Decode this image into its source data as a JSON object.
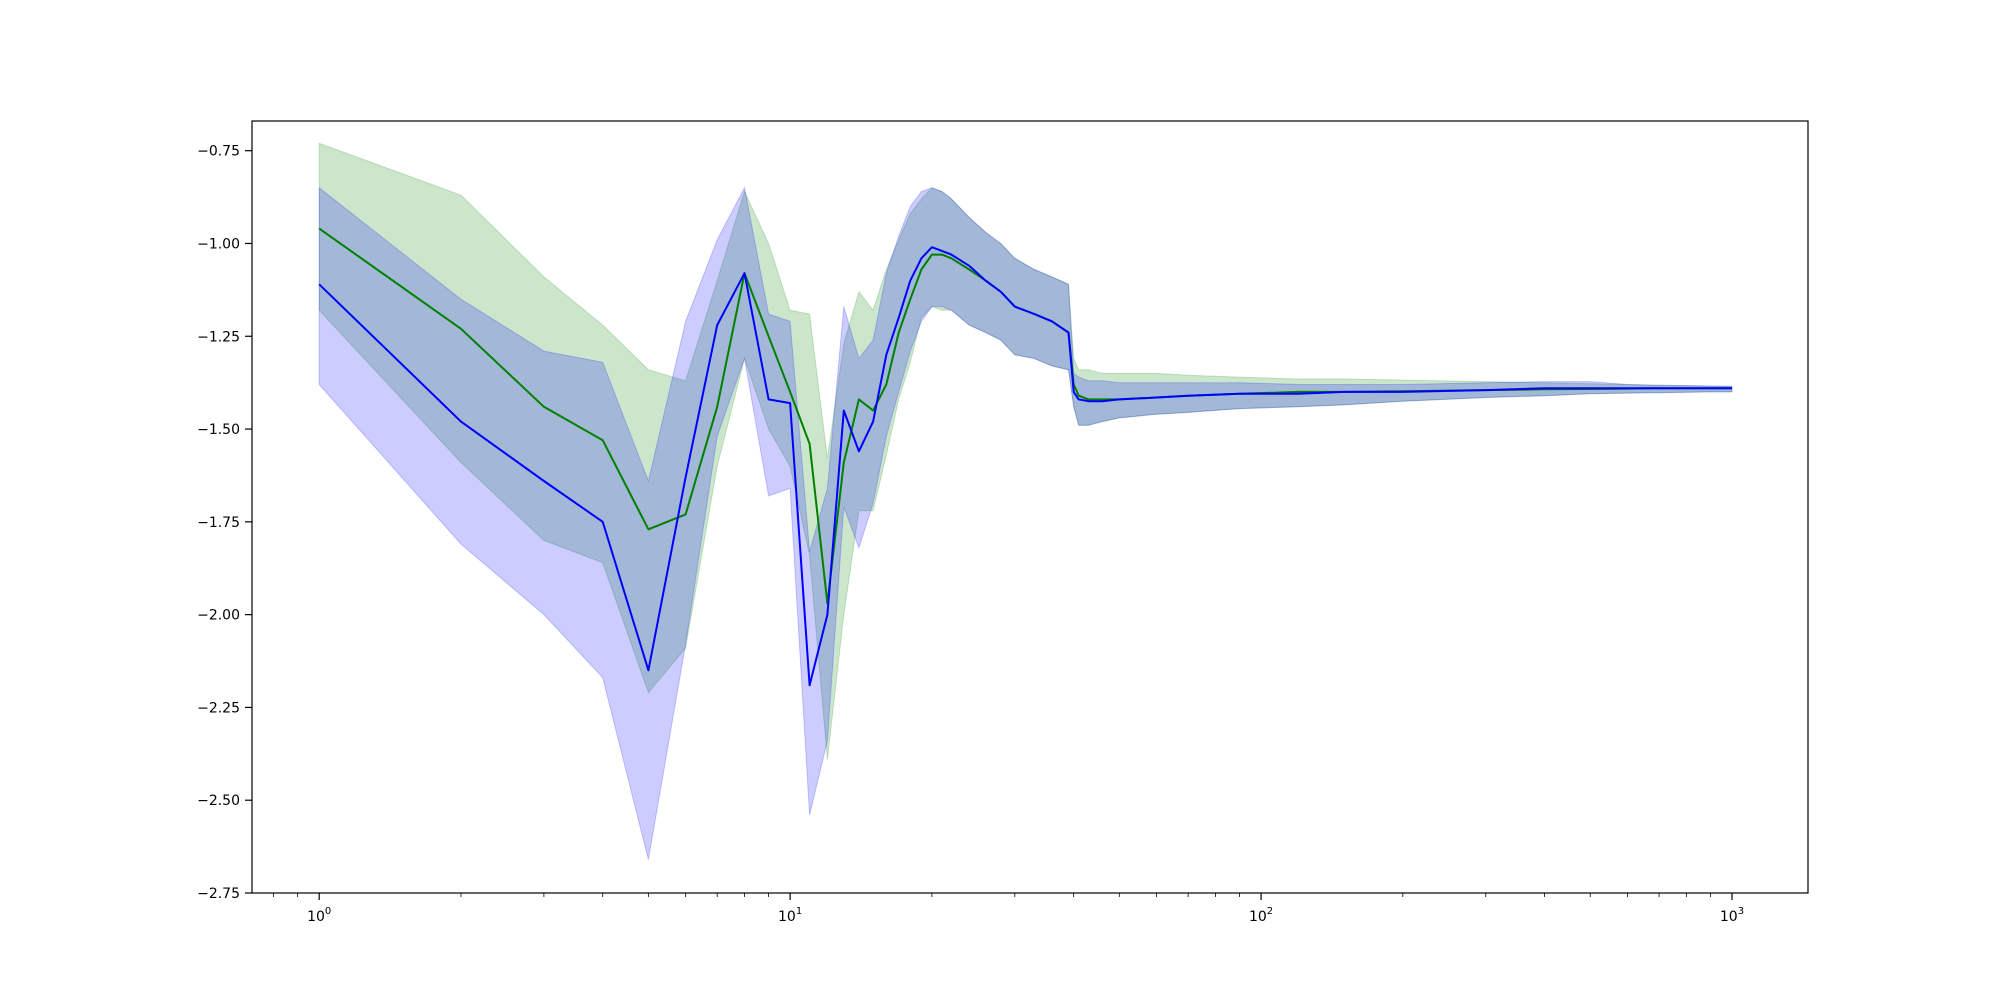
{
  "chart_data": {
    "type": "area",
    "title": "",
    "xlabel": "",
    "ylabel": "",
    "x_scale": "log",
    "xlim": [
      0.72,
      1450
    ],
    "ylim": [
      -2.75,
      -0.67
    ],
    "grid": false,
    "legend": "none",
    "x_major_ticks": [
      {
        "value": 1,
        "base": "10",
        "exp": "0"
      },
      {
        "value": 10,
        "base": "10",
        "exp": "1"
      },
      {
        "value": 100,
        "base": "10",
        "exp": "2"
      },
      {
        "value": 1000,
        "base": "10",
        "exp": "3"
      }
    ],
    "y_ticks": [
      {
        "value": -0.75,
        "label": "−0.75"
      },
      {
        "value": -1.0,
        "label": "−1.00"
      },
      {
        "value": -1.25,
        "label": "−1.25"
      },
      {
        "value": -1.5,
        "label": "−1.50"
      },
      {
        "value": -1.75,
        "label": "−1.75"
      },
      {
        "value": -2.0,
        "label": "−2.00"
      },
      {
        "value": -2.25,
        "label": "−2.25"
      },
      {
        "value": -2.5,
        "label": "−2.50"
      },
      {
        "value": -2.75,
        "label": "−2.75"
      }
    ],
    "series": [
      {
        "color": "#008000",
        "band_color": "#008000",
        "band_opacity": 0.2,
        "x": [
          1,
          2,
          3,
          4,
          5,
          6,
          7,
          8,
          9,
          10,
          11,
          12,
          13,
          14,
          15,
          16,
          17,
          18,
          19,
          20,
          21,
          22,
          24,
          26,
          28,
          30,
          33,
          36,
          39,
          40,
          41,
          43,
          46,
          50,
          60,
          70,
          90,
          120,
          150,
          200,
          300,
          400,
          500,
          600,
          700,
          800,
          900,
          1000
        ],
        "y": [
          -0.96,
          -1.23,
          -1.44,
          -1.53,
          -1.77,
          -1.73,
          -1.44,
          -1.08,
          -1.25,
          -1.4,
          -1.54,
          -1.97,
          -1.59,
          -1.42,
          -1.45,
          -1.38,
          -1.24,
          -1.15,
          -1.07,
          -1.03,
          -1.03,
          -1.04,
          -1.07,
          -1.1,
          -1.13,
          -1.17,
          -1.19,
          -1.21,
          -1.24,
          -1.38,
          -1.41,
          -1.42,
          -1.42,
          -1.42,
          -1.415,
          -1.41,
          -1.405,
          -1.4,
          -1.4,
          -1.398,
          -1.395,
          -1.393,
          -1.392,
          -1.391,
          -1.39,
          -1.39,
          -1.39,
          -1.39
        ],
        "lower": [
          -1.18,
          -1.59,
          -1.8,
          -1.86,
          -2.21,
          -2.09,
          -1.6,
          -1.31,
          -1.5,
          -1.6,
          -1.84,
          -2.39,
          -2.0,
          -1.72,
          -1.72,
          -1.57,
          -1.42,
          -1.32,
          -1.2,
          -1.17,
          -1.18,
          -1.18,
          -1.22,
          -1.24,
          -1.26,
          -1.3,
          -1.31,
          -1.33,
          -1.34,
          -1.44,
          -1.49,
          -1.49,
          -1.48,
          -1.47,
          -1.46,
          -1.455,
          -1.445,
          -1.44,
          -1.435,
          -1.425,
          -1.415,
          -1.41,
          -1.405,
          -1.403,
          -1.402,
          -1.401,
          -1.4,
          -1.4
        ],
        "upper": [
          -0.73,
          -0.87,
          -1.09,
          -1.22,
          -1.34,
          -1.37,
          -1.1,
          -0.86,
          -1.0,
          -1.18,
          -1.19,
          -1.58,
          -1.27,
          -1.13,
          -1.18,
          -1.07,
          -0.99,
          -0.92,
          -0.88,
          -0.85,
          -0.86,
          -0.88,
          -0.93,
          -0.97,
          -1.0,
          -1.04,
          -1.07,
          -1.09,
          -1.11,
          -1.31,
          -1.34,
          -1.34,
          -1.35,
          -1.35,
          -1.35,
          -1.355,
          -1.36,
          -1.365,
          -1.365,
          -1.368,
          -1.372,
          -1.375,
          -1.378,
          -1.38,
          -1.382,
          -1.383,
          -1.384,
          -1.385
        ]
      },
      {
        "color": "#0000ff",
        "band_color": "#0000ff",
        "band_opacity": 0.2,
        "x": [
          1,
          2,
          3,
          4,
          5,
          6,
          7,
          8,
          9,
          10,
          11,
          12,
          13,
          14,
          15,
          16,
          17,
          18,
          19,
          20,
          21,
          22,
          24,
          26,
          28,
          30,
          33,
          36,
          39,
          40,
          41,
          43,
          46,
          50,
          60,
          70,
          90,
          120,
          150,
          200,
          300,
          400,
          500,
          600,
          700,
          800,
          900,
          1000
        ],
        "y": [
          -1.11,
          -1.48,
          -1.64,
          -1.75,
          -2.15,
          -1.63,
          -1.22,
          -1.08,
          -1.42,
          -1.43,
          -2.19,
          -2.0,
          -1.45,
          -1.56,
          -1.48,
          -1.3,
          -1.2,
          -1.1,
          -1.04,
          -1.01,
          -1.02,
          -1.03,
          -1.06,
          -1.1,
          -1.13,
          -1.17,
          -1.19,
          -1.21,
          -1.24,
          -1.4,
          -1.42,
          -1.425,
          -1.425,
          -1.42,
          -1.415,
          -1.41,
          -1.405,
          -1.405,
          -1.4,
          -1.4,
          -1.395,
          -1.39,
          -1.39,
          -1.39,
          -1.39,
          -1.39,
          -1.39,
          -1.39
        ],
        "lower": [
          -1.38,
          -1.81,
          -2.0,
          -2.17,
          -2.66,
          -2.08,
          -1.52,
          -1.31,
          -1.68,
          -1.66,
          -2.54,
          -2.34,
          -1.71,
          -1.82,
          -1.7,
          -1.52,
          -1.4,
          -1.29,
          -1.21,
          -1.17,
          -1.17,
          -1.18,
          -1.22,
          -1.24,
          -1.26,
          -1.3,
          -1.31,
          -1.33,
          -1.34,
          -1.44,
          -1.49,
          -1.49,
          -1.48,
          -1.47,
          -1.46,
          -1.455,
          -1.445,
          -1.44,
          -1.435,
          -1.425,
          -1.415,
          -1.41,
          -1.405,
          -1.403,
          -1.402,
          -1.401,
          -1.4,
          -1.4
        ],
        "upper": [
          -0.85,
          -1.15,
          -1.29,
          -1.32,
          -1.64,
          -1.21,
          -0.99,
          -0.85,
          -1.19,
          -1.21,
          -1.83,
          -1.66,
          -1.17,
          -1.31,
          -1.26,
          -1.08,
          -0.98,
          -0.9,
          -0.86,
          -0.85,
          -0.86,
          -0.88,
          -0.93,
          -0.97,
          -1.0,
          -1.04,
          -1.07,
          -1.09,
          -1.11,
          -1.35,
          -1.36,
          -1.37,
          -1.37,
          -1.375,
          -1.375,
          -1.375,
          -1.375,
          -1.38,
          -1.38,
          -1.38,
          -1.375,
          -1.372,
          -1.372,
          -1.38,
          -1.382,
          -1.383,
          -1.384,
          -1.385
        ]
      }
    ]
  }
}
